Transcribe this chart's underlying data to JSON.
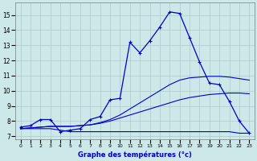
{
  "xlabel": "Graphe des températures (°c)",
  "bg_color": "#cce8e8",
  "grid_color": "#aacccc",
  "line_color": "#0000cc",
  "xlim": [
    -0.5,
    23.5
  ],
  "ylim": [
    6.8,
    15.8
  ],
  "yticks": [
    7,
    8,
    9,
    10,
    11,
    12,
    13,
    14,
    15
  ],
  "xticks": [
    0,
    1,
    2,
    3,
    4,
    5,
    6,
    7,
    8,
    9,
    10,
    11,
    12,
    13,
    14,
    15,
    16,
    17,
    18,
    19,
    20,
    21,
    22,
    23
  ],
  "hours": [
    0,
    1,
    2,
    3,
    4,
    5,
    6,
    7,
    8,
    9,
    10,
    11,
    12,
    13,
    14,
    15,
    16,
    17,
    18,
    19,
    20,
    21,
    22,
    23
  ],
  "temp": [
    7.6,
    7.7,
    8.1,
    8.1,
    7.3,
    7.4,
    7.5,
    8.1,
    8.3,
    9.4,
    9.5,
    13.2,
    12.5,
    13.3,
    14.2,
    15.2,
    15.1,
    13.5,
    11.9,
    10.5,
    10.4,
    9.3,
    8.0,
    7.2
  ],
  "line1": [
    7.5,
    7.5,
    7.5,
    7.5,
    7.4,
    7.3,
    7.3,
    7.3,
    7.3,
    7.3,
    7.3,
    7.3,
    7.3,
    7.3,
    7.3,
    7.3,
    7.3,
    7.3,
    7.3,
    7.3,
    7.3,
    7.3,
    7.2,
    7.2
  ],
  "line2": [
    7.5,
    7.55,
    7.6,
    7.65,
    7.65,
    7.65,
    7.7,
    7.75,
    7.85,
    8.0,
    8.2,
    8.4,
    8.6,
    8.8,
    9.0,
    9.2,
    9.4,
    9.55,
    9.65,
    9.75,
    9.8,
    9.85,
    9.85,
    9.8
  ],
  "line3": [
    7.5,
    7.55,
    7.6,
    7.65,
    7.65,
    7.65,
    7.7,
    7.75,
    7.9,
    8.1,
    8.4,
    8.8,
    9.2,
    9.6,
    10.0,
    10.4,
    10.7,
    10.85,
    10.9,
    10.95,
    10.95,
    10.9,
    10.8,
    10.7
  ]
}
